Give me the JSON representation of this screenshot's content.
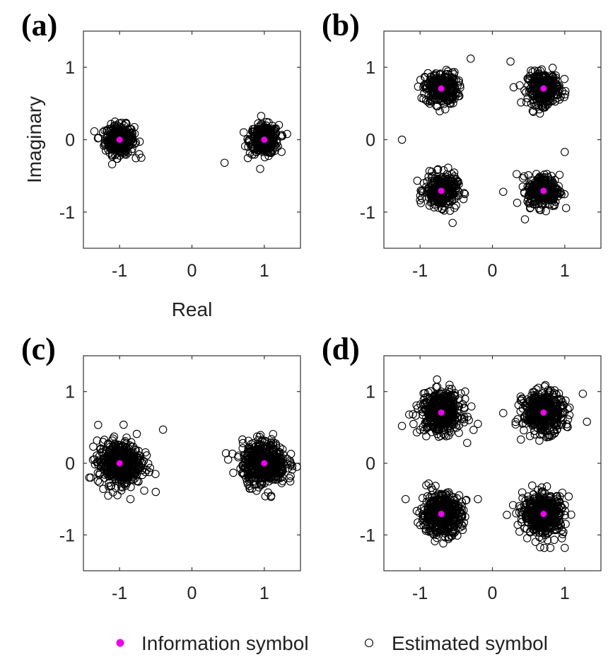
{
  "chart_data": [
    {
      "type": "scatter",
      "panel_label": "(a)",
      "xlabel": "Real",
      "ylabel": "Imaginary",
      "xlim": [
        -1.5,
        1.5
      ],
      "ylim": [
        -1.5,
        1.5
      ],
      "xticks": [
        -1,
        0,
        1
      ],
      "yticks": [
        -1,
        0,
        1
      ],
      "grid": false,
      "information_points": [
        [
          -1,
          0
        ],
        [
          1,
          0
        ]
      ],
      "estimate_spread": 0.1,
      "estimate_count": 320,
      "estimate_outliers": [
        [
          -1.3,
          0.02
        ],
        [
          0.45,
          -0.32
        ],
        [
          1.25,
          0.05
        ],
        [
          -0.7,
          -0.25
        ]
      ]
    },
    {
      "type": "scatter",
      "panel_label": "(b)",
      "xlabel": "",
      "ylabel": "",
      "xlim": [
        -1.5,
        1.5
      ],
      "ylim": [
        -1.5,
        1.5
      ],
      "xticks": [
        -1,
        0,
        1
      ],
      "yticks": [
        -1,
        0,
        1
      ],
      "grid": false,
      "information_points": [
        [
          -0.707,
          0.707
        ],
        [
          0.707,
          0.707
        ],
        [
          -0.707,
          -0.707
        ],
        [
          0.707,
          -0.707
        ]
      ],
      "estimate_spread": 0.11,
      "estimate_count": 300,
      "estimate_outliers": [
        [
          -1.25,
          0.0
        ],
        [
          -0.3,
          1.12
        ],
        [
          0.25,
          1.08
        ],
        [
          0.15,
          -0.72
        ],
        [
          1.0,
          -0.17
        ],
        [
          -0.55,
          -1.15
        ],
        [
          0.45,
          -1.1
        ],
        [
          -0.95,
          -0.6
        ]
      ]
    },
    {
      "type": "scatter",
      "panel_label": "(c)",
      "xlabel": "",
      "ylabel": "",
      "xlim": [
        -1.5,
        1.5
      ],
      "ylim": [
        -1.5,
        1.5
      ],
      "xticks": [
        -1,
        0,
        1
      ],
      "yticks": [
        -1,
        0,
        1
      ],
      "grid": false,
      "information_points": [
        [
          -1,
          0
        ],
        [
          1,
          0
        ]
      ],
      "estimate_spread": 0.15,
      "estimate_count": 500,
      "estimate_outliers": [
        [
          -0.4,
          0.47
        ],
        [
          -0.5,
          -0.4
        ],
        [
          0.47,
          0.14
        ],
        [
          0.5,
          0.05
        ],
        [
          -1.4,
          -0.2
        ],
        [
          -0.85,
          -0.5
        ],
        [
          1.45,
          -0.05
        ]
      ]
    },
    {
      "type": "scatter",
      "panel_label": "(d)",
      "xlabel": "",
      "ylabel": "",
      "xlim": [
        -1.5,
        1.5
      ],
      "ylim": [
        -1.5,
        1.5
      ],
      "xticks": [
        -1,
        0,
        1
      ],
      "yticks": [
        -1,
        0,
        1
      ],
      "grid": false,
      "information_points": [
        [
          -0.707,
          0.707
        ],
        [
          0.707,
          0.707
        ],
        [
          -0.707,
          -0.707
        ],
        [
          0.707,
          -0.707
        ]
      ],
      "estimate_spread": 0.14,
      "estimate_count": 450,
      "estimate_outliers": [
        [
          -1.25,
          0.52
        ],
        [
          -1.15,
          0.68
        ],
        [
          1.25,
          0.97
        ],
        [
          0.15,
          0.7
        ],
        [
          -0.2,
          0.55
        ],
        [
          -1.2,
          -0.5
        ],
        [
          1.0,
          -1.18
        ],
        [
          0.8,
          -1.18
        ],
        [
          -0.2,
          -0.5
        ],
        [
          0.2,
          -0.72
        ]
      ]
    }
  ],
  "legend": {
    "placement": "bottom-center",
    "items": [
      {
        "label": "Information symbol",
        "marker": "filled-circle",
        "color": "#ee00ee"
      },
      {
        "label": "Estimated symbol",
        "marker": "open-circle",
        "color": "#000000"
      }
    ]
  },
  "colors": {
    "information": "#ee00ee",
    "estimated": "#000000",
    "axes": "#333333"
  }
}
